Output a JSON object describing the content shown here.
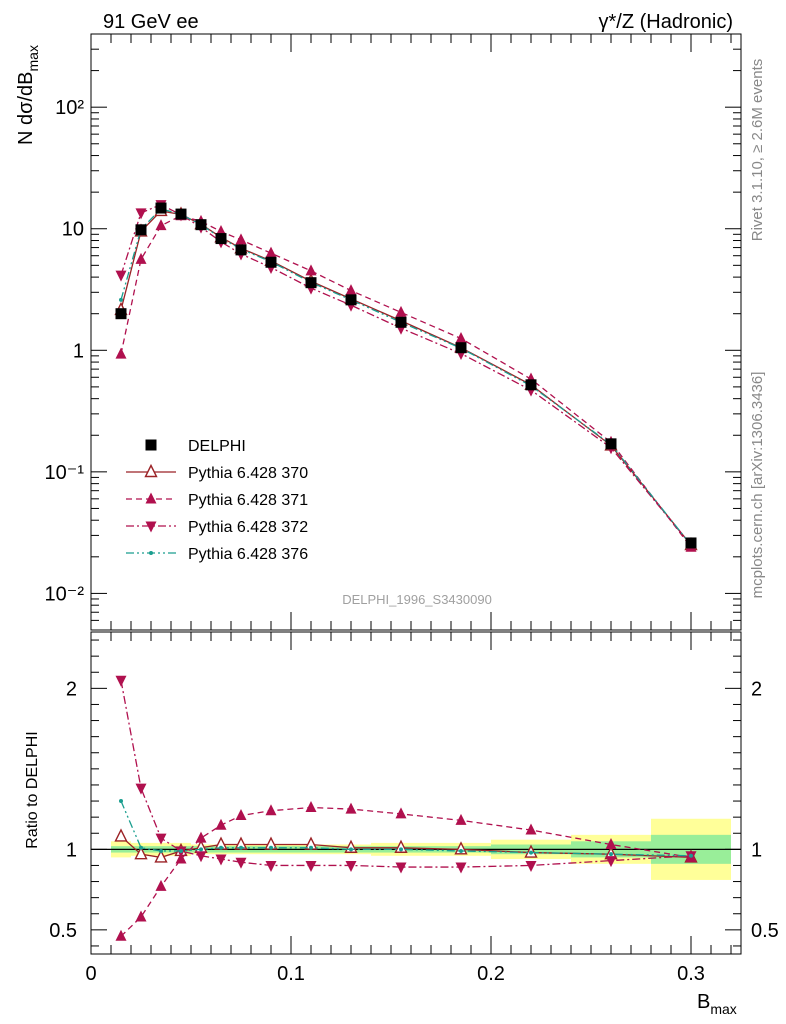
{
  "header": {
    "left": "91 GeV ee",
    "right": "γ*/Z (Hadronic)"
  },
  "side_labels": {
    "rivet": "Rivet 3.1.10, ≥ 2.6M events",
    "mcplots": "mcplots.cern.ch [arXiv:1306.3436]"
  },
  "watermark": "DELPHI_1996_S3430090",
  "axes": {
    "top_ylabel": "N dσ/dB",
    "top_ylabel_sub": "max",
    "bottom_ylabel": "Ratio to DELPHI",
    "xlabel": "B",
    "xlabel_sub": "max"
  },
  "chart_data": [
    {
      "type": "scatter",
      "yscale": "log",
      "xlim": [
        0,
        0.325
      ],
      "ylim": [
        0.005,
        400
      ],
      "ytick_labels": [
        "10⁻²",
        "10⁻¹",
        "1",
        "10",
        "10²"
      ],
      "ytick_values": [
        0.01,
        0.1,
        1,
        10,
        100
      ],
      "x": [
        0.015,
        0.025,
        0.035,
        0.045,
        0.055,
        0.065,
        0.075,
        0.09,
        0.11,
        0.13,
        0.155,
        0.185,
        0.22,
        0.26,
        0.3
      ],
      "series": [
        {
          "name": "DELPHI",
          "color": "#000000",
          "marker": "square",
          "values": [
            2.0,
            9.8,
            14.8,
            13.2,
            10.8,
            8.3,
            6.7,
            5.3,
            3.6,
            2.6,
            1.7,
            1.05,
            0.52,
            0.17,
            0.026
          ]
        },
        {
          "name": "Pythia 6.428 370",
          "color": "#9b2226",
          "marker": "open-triangle-up",
          "line": "solid",
          "values": [
            2.15,
            9.5,
            14.0,
            13.1,
            10.9,
            8.5,
            6.9,
            5.45,
            3.7,
            2.65,
            1.75,
            1.05,
            0.52,
            0.165,
            0.025
          ]
        },
        {
          "name": "Pythia 6.428 371",
          "color": "#b0104e",
          "marker": "triangle-up",
          "line": "dashed",
          "values": [
            0.93,
            5.6,
            10.6,
            12.8,
            11.5,
            9.5,
            8.1,
            6.3,
            4.5,
            3.1,
            2.05,
            1.25,
            0.58,
            0.175,
            0.024
          ]
        },
        {
          "name": "Pythia 6.428 372",
          "color": "#b0104e",
          "marker": "triangle-down",
          "line": "dashdot",
          "values": [
            4.15,
            13.5,
            15.8,
            13.0,
            10.3,
            7.8,
            6.2,
            4.8,
            3.25,
            2.35,
            1.52,
            0.94,
            0.47,
            0.158,
            0.025
          ]
        },
        {
          "name": "Pythia 6.428 376",
          "color": "#1a9e8f",
          "marker": "dot",
          "line": "dashdotdot",
          "values": [
            2.6,
            9.9,
            14.6,
            13.1,
            10.8,
            8.4,
            6.8,
            5.35,
            3.62,
            2.6,
            1.7,
            1.04,
            0.51,
            0.168,
            0.025
          ]
        }
      ],
      "legend_position": "middle-left"
    },
    {
      "type": "scatter",
      "xlim": [
        0,
        0.325
      ],
      "ylim": [
        0.35,
        2.35
      ],
      "xtick_values": [
        0,
        0.1,
        0.2,
        0.3
      ],
      "xtick_labels": [
        "0",
        "0.1",
        "0.2",
        "0.3"
      ],
      "ytick_values": [
        0.5,
        1,
        2
      ],
      "ytick_labels": [
        "0.5",
        "1",
        "2"
      ],
      "bands": [
        {
          "x0": 0.01,
          "x1": 0.02,
          "inner": 0.02,
          "outer": 0.05
        },
        {
          "x0": 0.02,
          "x1": 0.03,
          "inner": 0.02,
          "outer": 0.04
        },
        {
          "x0": 0.03,
          "x1": 0.04,
          "inner": 0.02,
          "outer": 0.04
        },
        {
          "x0": 0.04,
          "x1": 0.05,
          "inner": 0.02,
          "outer": 0.04
        },
        {
          "x0": 0.05,
          "x1": 0.06,
          "inner": 0.02,
          "outer": 0.03
        },
        {
          "x0": 0.06,
          "x1": 0.07,
          "inner": 0.02,
          "outer": 0.03
        },
        {
          "x0": 0.07,
          "x1": 0.08,
          "inner": 0.02,
          "outer": 0.03
        },
        {
          "x0": 0.08,
          "x1": 0.1,
          "inner": 0.02,
          "outer": 0.03
        },
        {
          "x0": 0.1,
          "x1": 0.12,
          "inner": 0.02,
          "outer": 0.03
        },
        {
          "x0": 0.12,
          "x1": 0.14,
          "inner": 0.02,
          "outer": 0.03
        },
        {
          "x0": 0.14,
          "x1": 0.17,
          "inner": 0.02,
          "outer": 0.04
        },
        {
          "x0": 0.17,
          "x1": 0.2,
          "inner": 0.02,
          "outer": 0.04
        },
        {
          "x0": 0.2,
          "x1": 0.24,
          "inner": 0.03,
          "outer": 0.06
        },
        {
          "x0": 0.24,
          "x1": 0.28,
          "inner": 0.05,
          "outer": 0.09
        },
        {
          "x0": 0.28,
          "x1": 0.32,
          "inner": 0.09,
          "outer": 0.19
        }
      ],
      "x": [
        0.015,
        0.025,
        0.035,
        0.045,
        0.055,
        0.065,
        0.075,
        0.09,
        0.11,
        0.13,
        0.155,
        0.185,
        0.22,
        0.26,
        0.3
      ],
      "series": [
        {
          "name": "Pythia 6.428 370",
          "color": "#9b2226",
          "marker": "open-triangle-up",
          "line": "solid",
          "values": [
            1.08,
            0.97,
            0.95,
            0.99,
            1.01,
            1.03,
            1.03,
            1.03,
            1.03,
            1.01,
            1.01,
            1.0,
            0.98,
            0.97,
            0.95
          ]
        },
        {
          "name": "Pythia 6.428 371",
          "color": "#b0104e",
          "marker": "triangle-up",
          "line": "dashed",
          "values": [
            0.46,
            0.58,
            0.77,
            0.94,
            1.07,
            1.15,
            1.21,
            1.24,
            1.26,
            1.25,
            1.22,
            1.18,
            1.12,
            1.03,
            0.95
          ]
        },
        {
          "name": "Pythia 6.428 372",
          "color": "#b0104e",
          "marker": "triangle-down",
          "line": "dashdot",
          "values": [
            2.05,
            1.38,
            1.07,
            0.99,
            0.96,
            0.94,
            0.92,
            0.9,
            0.9,
            0.9,
            0.89,
            0.89,
            0.9,
            0.93,
            0.96
          ]
        },
        {
          "name": "Pythia 6.428 376",
          "color": "#1a9e8f",
          "marker": "dot",
          "line": "dashdotdot",
          "values": [
            1.3,
            1.01,
            0.99,
            0.99,
            1.0,
            1.01,
            1.01,
            1.01,
            1.01,
            1.0,
            1.0,
            0.99,
            0.98,
            0.97,
            0.96
          ]
        }
      ]
    }
  ]
}
